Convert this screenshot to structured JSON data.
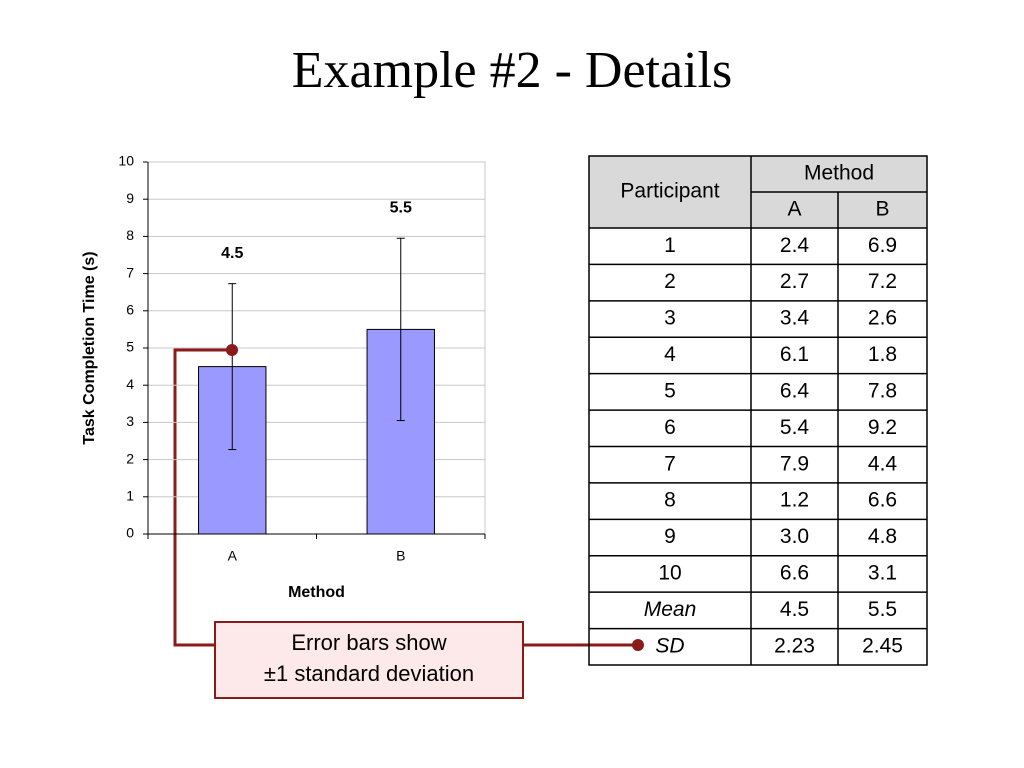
{
  "title": "Example #2 - Details",
  "chart_data": {
    "type": "bar",
    "categories": [
      "A",
      "B"
    ],
    "values": [
      4.5,
      5.5
    ],
    "errors": [
      2.23,
      2.45
    ],
    "color": "#9999ff",
    "xlabel": "Method",
    "ylabel": "Task Completion Time (s)",
    "ylim": [
      0,
      10
    ],
    "yticks": [
      0,
      1,
      2,
      3,
      4,
      5,
      6,
      7,
      8,
      9,
      10
    ],
    "grid": true
  },
  "table": {
    "header": [
      "Participant",
      "Method"
    ],
    "subheader": [
      "A",
      "B"
    ],
    "rows": [
      [
        "1",
        "2.4",
        "6.9"
      ],
      [
        "2",
        "2.7",
        "7.2"
      ],
      [
        "3",
        "3.4",
        "2.6"
      ],
      [
        "4",
        "6.1",
        "1.8"
      ],
      [
        "5",
        "6.4",
        "7.8"
      ],
      [
        "6",
        "5.4",
        "9.2"
      ],
      [
        "7",
        "7.9",
        "4.4"
      ],
      [
        "8",
        "1.2",
        "6.6"
      ],
      [
        "9",
        "3.0",
        "4.8"
      ],
      [
        "10",
        "6.6",
        "3.1"
      ],
      [
        "Mean",
        "4.5",
        "5.5"
      ],
      [
        "SD",
        "2.23",
        "2.45"
      ]
    ]
  },
  "annotation": [
    "Error bars show",
    "±1 standard deviation"
  ]
}
